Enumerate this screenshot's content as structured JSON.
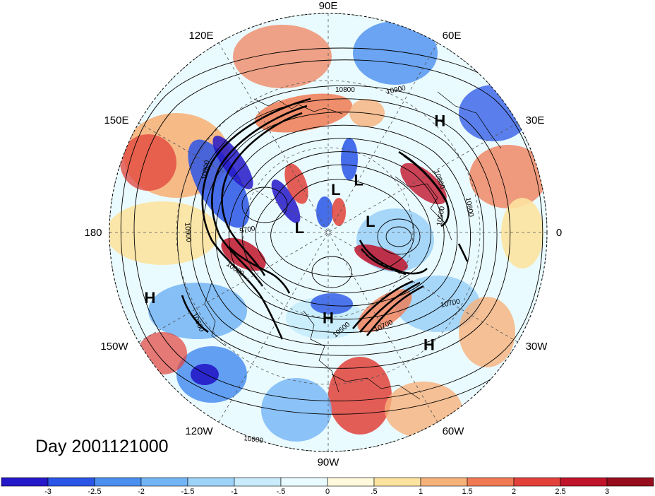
{
  "title": "Day 2001121000",
  "longitude_labels": [
    "90E",
    "60E",
    "30E",
    "0",
    "30W",
    "60W",
    "90W",
    "120W",
    "150W",
    "180",
    "150E",
    "120E"
  ],
  "pressure_centers": [
    {
      "letter": "H",
      "lon": 135,
      "lat": 25
    },
    {
      "letter": "H",
      "lon": 42,
      "lat": 28
    },
    {
      "letter": "H",
      "lon": -70,
      "lat": 12
    },
    {
      "letter": "H",
      "lon": 0,
      "lat": 55
    },
    {
      "letter": "L",
      "lon": 150,
      "lat": 65
    },
    {
      "letter": "L",
      "lon": 105,
      "lat": 72
    },
    {
      "letter": "L",
      "lon": 170,
      "lat": 72
    },
    {
      "letter": "L",
      "lon": -100,
      "lat": 78
    }
  ],
  "contour_labels": [
    "10800",
    "10900",
    "10800",
    "10800",
    "10500",
    "10700",
    "10700",
    "10500",
    "10600",
    "9700",
    "10900",
    "10800",
    "10600",
    "10900"
  ],
  "colorbar": {
    "ticks": [
      "-3",
      "-2.5",
      "-2",
      "-1.5",
      "-1",
      "-.5",
      "0",
      ".5",
      "1",
      "1.5",
      "2",
      "2.5",
      "3"
    ],
    "colors": [
      "#2418c8",
      "#2a55e6",
      "#4a8ef0",
      "#73b4f5",
      "#9ed3f8",
      "#c8ecfc",
      "#eafbff",
      "#fffadc",
      "#fde3a0",
      "#f7b27a",
      "#f07a52",
      "#e2413a",
      "#c0142a",
      "#960d1e"
    ]
  }
}
